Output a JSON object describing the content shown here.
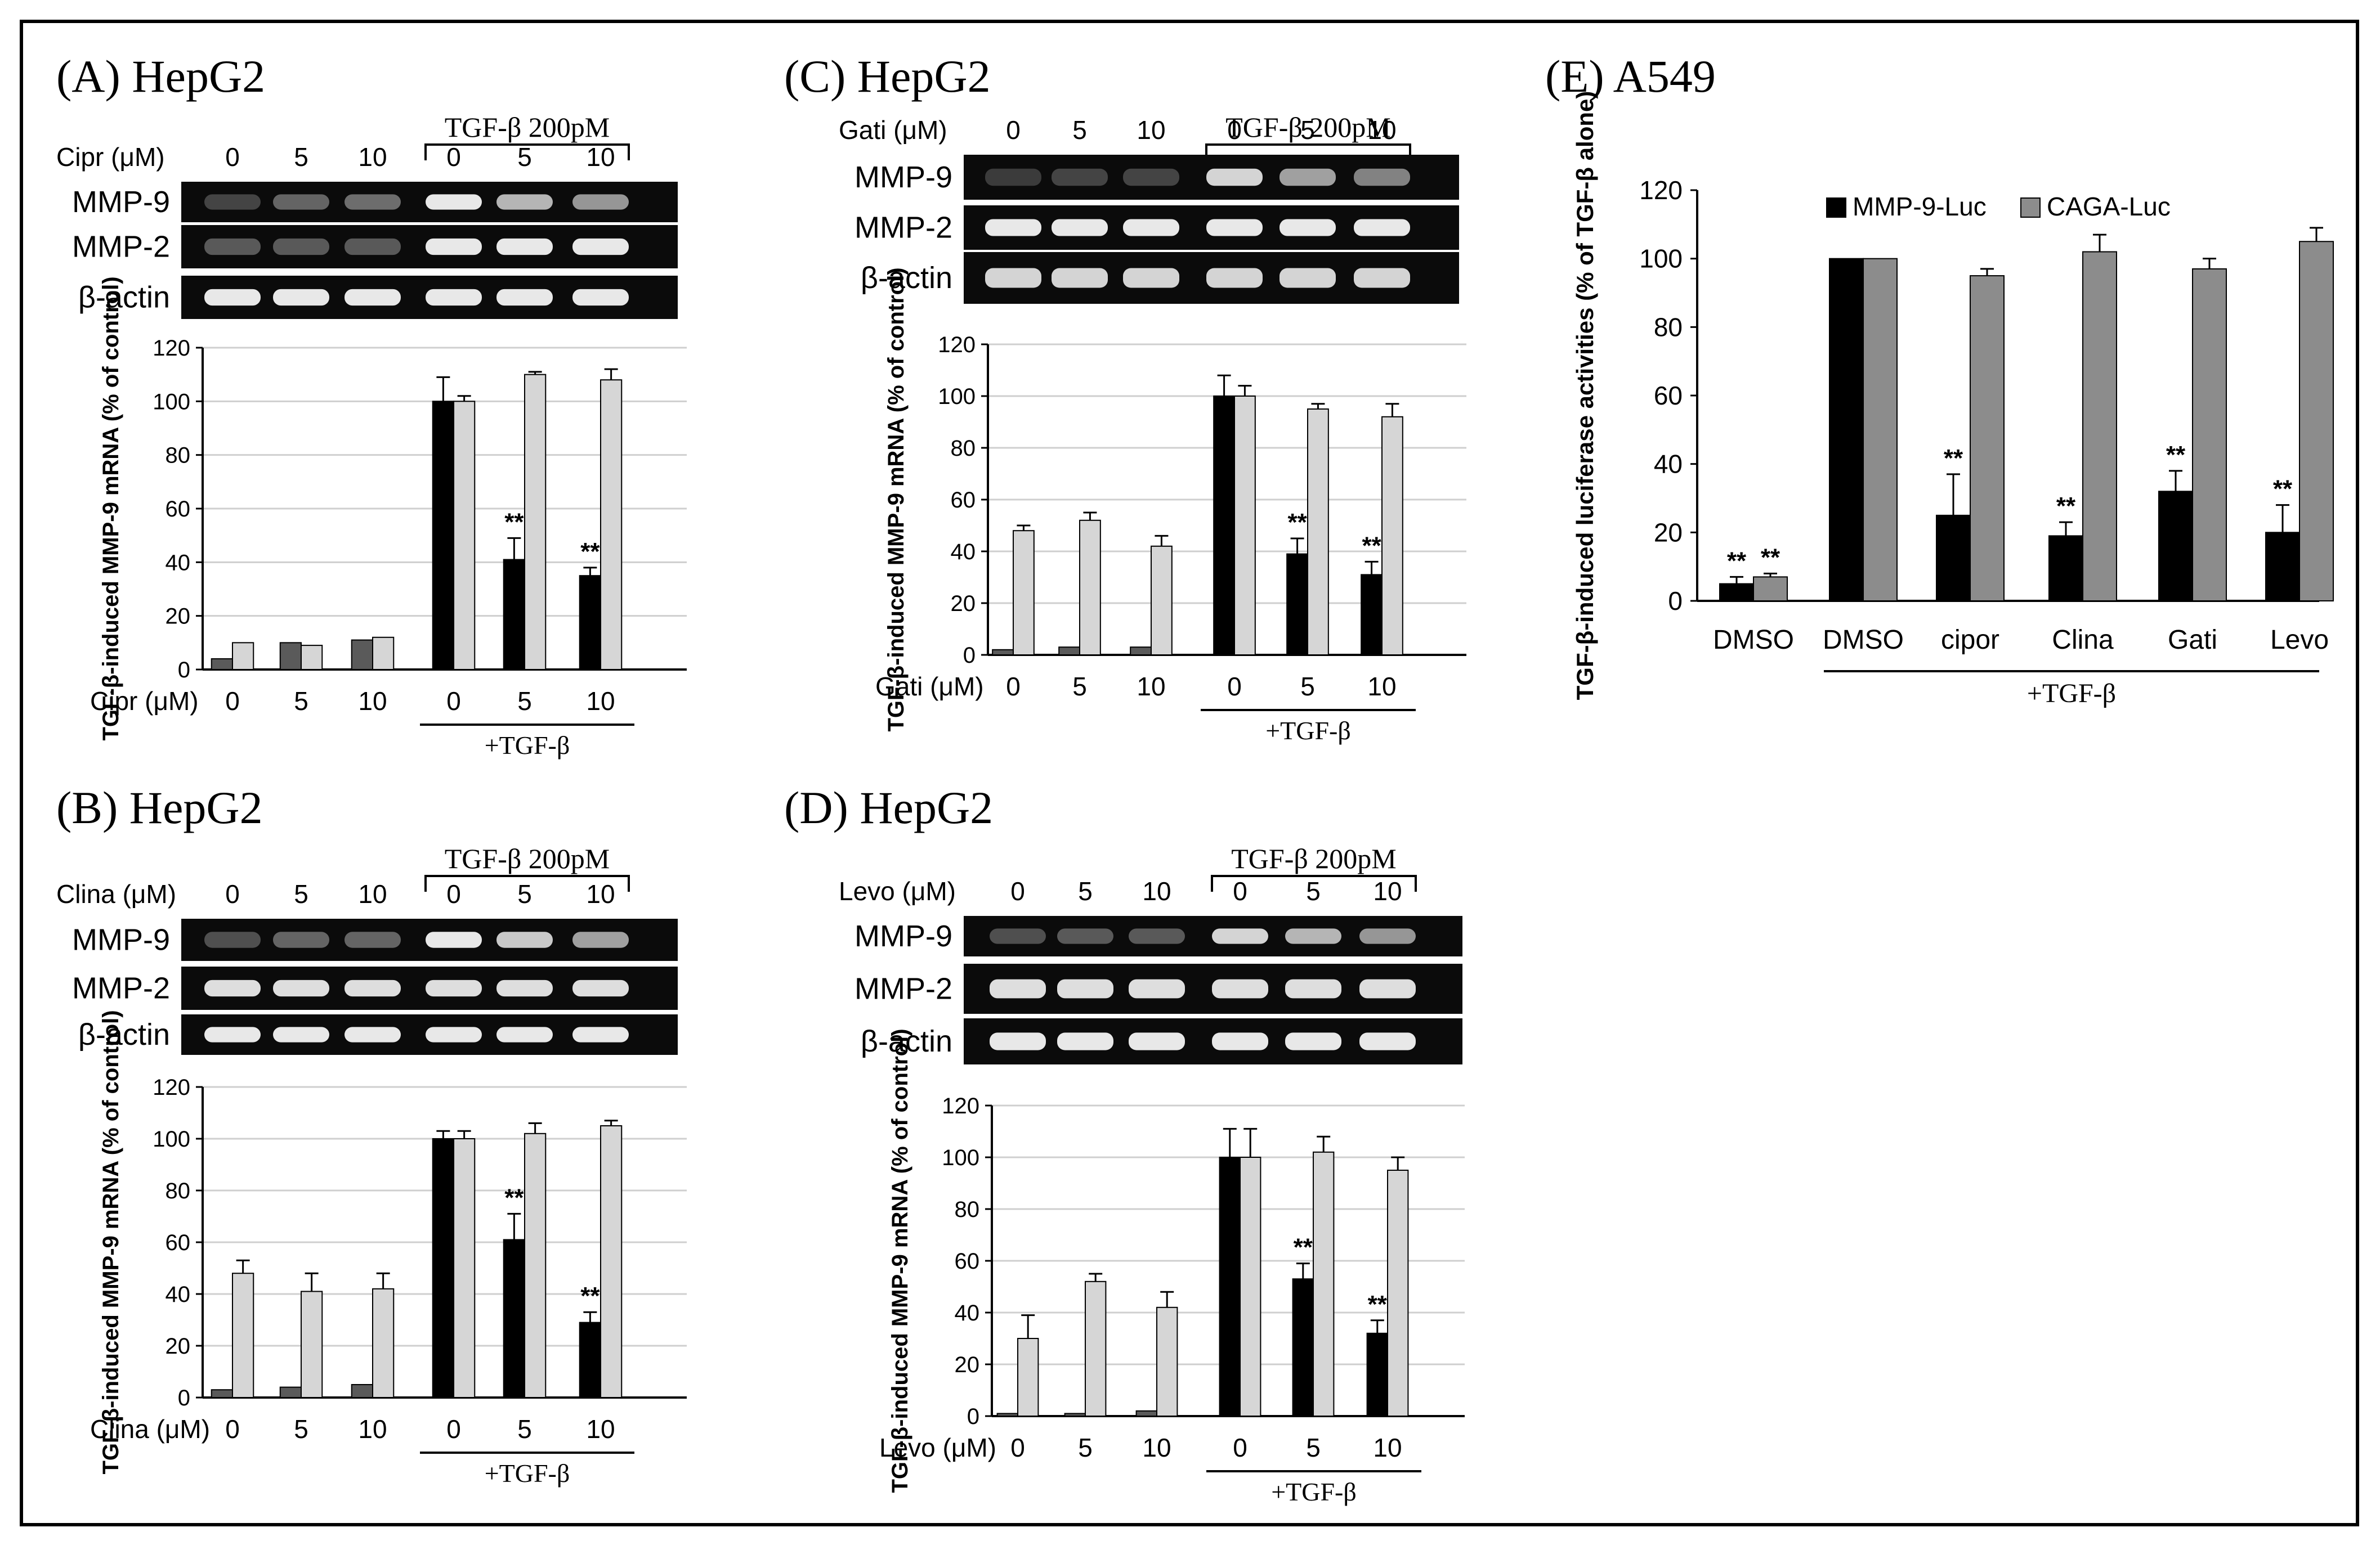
{
  "figure": {
    "panels": [
      {
        "id": "A",
        "title": "(A) HepG2",
        "treatment_bracket": "TGF-β 200pM",
        "drug_label": "Cipr (μM)",
        "doses": [
          "0",
          "5",
          "10",
          "0",
          "5",
          "10"
        ],
        "gel_rows": [
          {
            "label": "MMP-9",
            "intensity": [
              0.15,
              0.3,
              0.35,
              0.95,
              0.7,
              0.55
            ]
          },
          {
            "label": "MMP-2",
            "intensity": [
              0.25,
              0.25,
              0.25,
              0.95,
              0.95,
              0.95
            ]
          },
          {
            "label": "β-actin",
            "intensity": [
              0.95,
              0.95,
              0.95,
              0.95,
              0.95,
              0.95
            ]
          }
        ],
        "sub_label": "+TGF-β"
      },
      {
        "id": "B",
        "title": "(B) HepG2",
        "treatment_bracket": "TGF-β 200pM",
        "drug_label": "Clina (μM)",
        "doses": [
          "0",
          "5",
          "10",
          "0",
          "5",
          "10"
        ],
        "gel_rows": [
          {
            "label": "MMP-9",
            "intensity": [
              0.2,
              0.3,
              0.3,
              0.95,
              0.8,
              0.6
            ]
          },
          {
            "label": "MMP-2",
            "intensity": [
              0.9,
              0.9,
              0.9,
              0.9,
              0.9,
              0.9
            ]
          },
          {
            "label": "β-actin",
            "intensity": [
              0.95,
              0.95,
              0.95,
              0.95,
              0.95,
              0.95
            ]
          }
        ],
        "sub_label": "+TGF-β"
      },
      {
        "id": "C",
        "title": "(C) HepG2",
        "treatment_bracket": "TGF-β 200pM",
        "drug_label": "Gati (μM)",
        "doses": [
          "0",
          "5",
          "10",
          "0",
          "5",
          "10"
        ],
        "gel_rows": [
          {
            "label": "MMP-9",
            "intensity": [
              0.1,
              0.15,
              0.15,
              0.85,
              0.6,
              0.45
            ]
          },
          {
            "label": "MMP-2",
            "intensity": [
              0.95,
              0.95,
              0.95,
              0.95,
              0.95,
              0.95
            ]
          },
          {
            "label": "β-actin",
            "intensity": [
              0.85,
              0.85,
              0.85,
              0.85,
              0.85,
              0.85
            ]
          }
        ],
        "sub_label": "+TGF-β"
      },
      {
        "id": "D",
        "title": "(D) HepG2",
        "treatment_bracket": "TGF-β 200pM",
        "drug_label": "Levo (μM)",
        "doses": [
          "0",
          "5",
          "10",
          "0",
          "5",
          "10"
        ],
        "gel_rows": [
          {
            "label": "MMP-9",
            "intensity": [
              0.2,
              0.25,
              0.25,
              0.85,
              0.7,
              0.55
            ]
          },
          {
            "label": "MMP-2",
            "intensity": [
              0.9,
              0.9,
              0.9,
              0.9,
              0.9,
              0.9
            ]
          },
          {
            "label": "β-actin",
            "intensity": [
              0.95,
              0.95,
              0.95,
              0.95,
              0.95,
              0.95
            ]
          }
        ],
        "sub_label": "+TGF-β"
      },
      {
        "id": "E",
        "title": "(E) A549"
      }
    ]
  },
  "chart_data": [
    {
      "id": "A",
      "type": "bar",
      "ylabel": "TGF-β-induced MMP-9 mRNA (% of control)",
      "xlabel": "Cipr (μM)",
      "categories": [
        "0",
        "5",
        "10",
        "0",
        "5",
        "10"
      ],
      "group_label": "+TGF-β",
      "ylim": [
        0,
        120
      ],
      "yticks": [
        "0",
        "20",
        "40",
        "60",
        "80",
        "100",
        "120"
      ],
      "series": [
        {
          "color": "#000000",
          "values": [
            4,
            10,
            11,
            100,
            41,
            35
          ],
          "errors": [
            0,
            0,
            0,
            9,
            8,
            3
          ]
        },
        {
          "color": "#d6d6d6",
          "values": [
            10,
            9,
            12,
            100,
            110,
            108
          ],
          "errors": [
            0,
            0,
            0,
            2,
            1,
            4
          ]
        }
      ],
      "annotations": [
        {
          "category": 4,
          "series": 0,
          "text": "**"
        },
        {
          "category": 5,
          "series": 0,
          "text": "**"
        }
      ]
    },
    {
      "id": "B",
      "type": "bar",
      "ylabel": "TGF-β-induced MMP-9 mRNA (% of control)",
      "xlabel": "Clina (μM)",
      "categories": [
        "0",
        "5",
        "10",
        "0",
        "5",
        "10"
      ],
      "group_label": "+TGF-β",
      "ylim": [
        0,
        120
      ],
      "yticks": [
        "0",
        "20",
        "40",
        "60",
        "80",
        "100",
        "120"
      ],
      "series": [
        {
          "color": "#000000",
          "values": [
            3,
            4,
            5,
            100,
            61,
            29
          ],
          "errors": [
            0,
            0,
            0,
            3,
            10,
            4
          ]
        },
        {
          "color": "#d6d6d6",
          "values": [
            48,
            41,
            42,
            100,
            102,
            105
          ],
          "errors": [
            5,
            7,
            6,
            3,
            4,
            2
          ]
        }
      ],
      "annotations": [
        {
          "category": 4,
          "series": 0,
          "text": "**"
        },
        {
          "category": 5,
          "series": 0,
          "text": "**"
        }
      ]
    },
    {
      "id": "C",
      "type": "bar",
      "ylabel": "TGF-β-induced MMP-9 mRNA (% of control)",
      "xlabel": "Gati (μM)",
      "categories": [
        "0",
        "5",
        "10",
        "0",
        "5",
        "10"
      ],
      "group_label": "+TGF-β",
      "ylim": [
        0,
        120
      ],
      "yticks": [
        "0",
        "20",
        "40",
        "60",
        "80",
        "100",
        "120"
      ],
      "series": [
        {
          "color": "#000000",
          "values": [
            2,
            3,
            3,
            100,
            39,
            31
          ],
          "errors": [
            0,
            0,
            0,
            8,
            6,
            5
          ]
        },
        {
          "color": "#d6d6d6",
          "values": [
            48,
            52,
            42,
            100,
            95,
            92
          ],
          "errors": [
            2,
            3,
            4,
            4,
            2,
            5
          ]
        }
      ],
      "annotations": [
        {
          "category": 4,
          "series": 0,
          "text": "**"
        },
        {
          "category": 5,
          "series": 0,
          "text": "**"
        }
      ]
    },
    {
      "id": "D",
      "type": "bar",
      "ylabel": "TGF-β-induced MMP-9 mRNA (% of control)",
      "xlabel": "Levo (μM)",
      "categories": [
        "0",
        "5",
        "10",
        "0",
        "5",
        "10"
      ],
      "group_label": "+TGF-β",
      "ylim": [
        0,
        120
      ],
      "yticks": [
        "0",
        "20",
        "40",
        "60",
        "80",
        "100",
        "120"
      ],
      "series": [
        {
          "color": "#000000",
          "values": [
            1,
            1,
            2,
            100,
            53,
            32
          ],
          "errors": [
            0,
            0,
            0,
            11,
            6,
            5
          ]
        },
        {
          "color": "#d6d6d6",
          "values": [
            30,
            52,
            42,
            100,
            102,
            95
          ],
          "errors": [
            9,
            3,
            6,
            11,
            6,
            5
          ]
        }
      ],
      "annotations": [
        {
          "category": 4,
          "series": 0,
          "text": "**"
        },
        {
          "category": 5,
          "series": 0,
          "text": "**"
        }
      ]
    },
    {
      "id": "E",
      "type": "bar",
      "ylabel": "TGF-β-induced luciferase activities (% of TGF-β alone)",
      "categories": [
        "DMSO",
        "DMSO",
        "cipor",
        "Clina",
        "Gati",
        "Levo"
      ],
      "group_label": "+TGF-β",
      "ylim": [
        0,
        120
      ],
      "yticks": [
        "0",
        "20",
        "40",
        "60",
        "80",
        "100",
        "120"
      ],
      "legend_position": "top",
      "series": [
        {
          "name": "MMP-9-Luc",
          "color": "#000000",
          "values": [
            5,
            100,
            25,
            19,
            32,
            20
          ],
          "errors": [
            2,
            0,
            12,
            4,
            6,
            8
          ]
        },
        {
          "name": "CAGA-Luc",
          "color": "#8c8c8c",
          "values": [
            7,
            100,
            95,
            102,
            97,
            105
          ],
          "errors": [
            1,
            0,
            2,
            5,
            3,
            4
          ]
        }
      ],
      "annotations": [
        {
          "category": 0,
          "series": 0,
          "text": "**"
        },
        {
          "category": 0,
          "series": 1,
          "text": "**"
        },
        {
          "category": 2,
          "series": 0,
          "text": "**"
        },
        {
          "category": 3,
          "series": 0,
          "text": "**"
        },
        {
          "category": 4,
          "series": 0,
          "text": "**"
        },
        {
          "category": 5,
          "series": 0,
          "text": "**"
        }
      ]
    }
  ]
}
